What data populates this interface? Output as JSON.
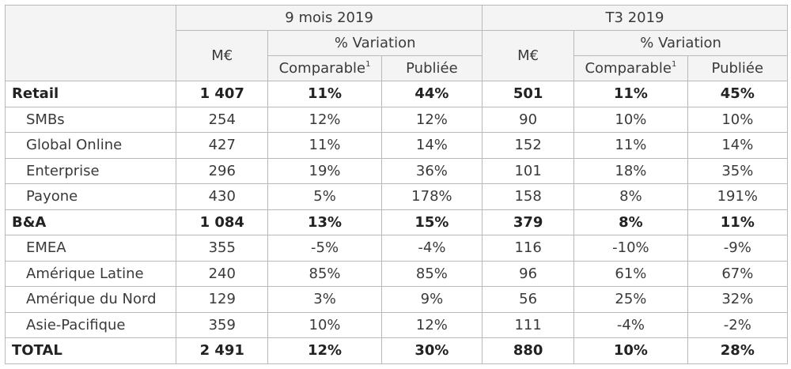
{
  "header": {
    "period1": "9 mois 2019",
    "period2": "T3 2019",
    "unit": "M€",
    "variation": "% Variation",
    "comparable": "Comparable",
    "comparable_note": "1",
    "publiee": "Publiée"
  },
  "rows": [
    {
      "label": "Retail",
      "v": [
        "1 407",
        "11%",
        "44%",
        "501",
        "11%",
        "45%"
      ]
    },
    {
      "label": "SMBs",
      "v": [
        "254",
        "12%",
        "12%",
        "90",
        "10%",
        "10%"
      ]
    },
    {
      "label": "Global Online",
      "v": [
        "427",
        "11%",
        "14%",
        "152",
        "11%",
        "14%"
      ]
    },
    {
      "label": "Enterprise",
      "v": [
        "296",
        "19%",
        "36%",
        "101",
        "18%",
        "35%"
      ]
    },
    {
      "label": "Payone",
      "v": [
        "430",
        "5%",
        "178%",
        "158",
        "8%",
        "191%"
      ]
    },
    {
      "label": "B&A",
      "v": [
        "1 084",
        "13%",
        "15%",
        "379",
        "8%",
        "11%"
      ]
    },
    {
      "label": "EMEA",
      "v": [
        "355",
        "-5%",
        "-4%",
        "116",
        "-10%",
        "-9%"
      ]
    },
    {
      "label": "Amérique Latine",
      "v": [
        "240",
        "85%",
        "85%",
        "96",
        "61%",
        "67%"
      ]
    },
    {
      "label": "Amérique du Nord",
      "v": [
        "129",
        "3%",
        "9%",
        "56",
        "25%",
        "32%"
      ]
    },
    {
      "label": "Asie-Pacifique",
      "v": [
        "359",
        "10%",
        "12%",
        "111",
        "-4%",
        "-2%"
      ]
    },
    {
      "label": "TOTAL",
      "v": [
        "2 491",
        "12%",
        "30%",
        "880",
        "10%",
        "28%"
      ]
    }
  ]
}
